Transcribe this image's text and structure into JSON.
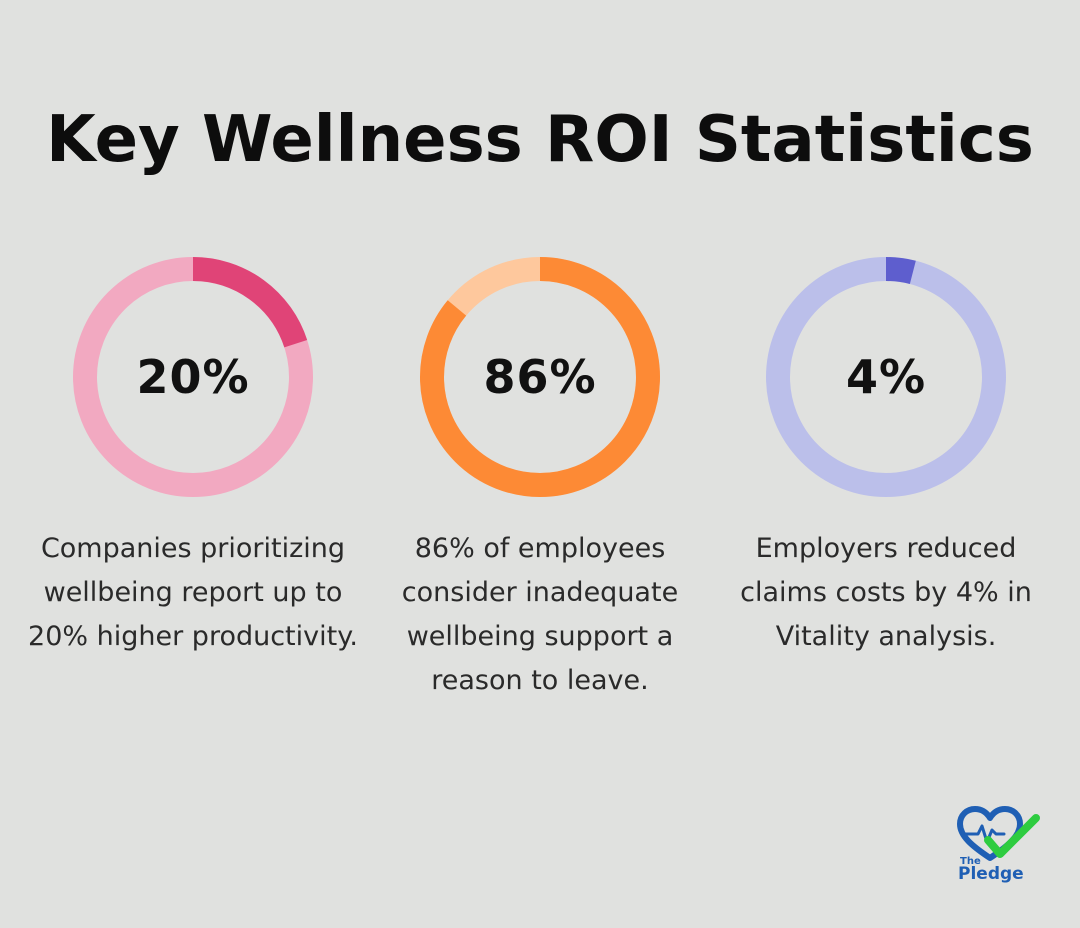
{
  "header": {
    "title": "Key Wellness ROI Statistics"
  },
  "chart_data": [
    {
      "type": "pie",
      "variant": "donut",
      "value": 20,
      "label": "20%",
      "description": "Companies prioritizing wellbeing report up to 20% higher productivity.",
      "colors": {
        "filled": "#e04477",
        "track": "#f2a9c1"
      }
    },
    {
      "type": "pie",
      "variant": "donut",
      "value": 86,
      "label": "86%",
      "description": "86% of employees consider inadequate wellbeing support a reason to leave.",
      "colors": {
        "filled": "#fd8a35",
        "track": "#fec89d"
      }
    },
    {
      "type": "pie",
      "variant": "donut",
      "value": 4,
      "label": "4%",
      "description": "Employers reduced claims costs by 4% in Vitality analysis.",
      "colors": {
        "filled": "#5e5ece",
        "track": "#bbbfea"
      }
    }
  ],
  "logo": {
    "the": "The",
    "name": "Pledge",
    "icon": "heart-check-icon",
    "colors": {
      "heart": "#1f5fb4",
      "check": "#2ecc40"
    }
  },
  "colors": {
    "background": "#e0e1df",
    "title": "#0d0d0d"
  }
}
